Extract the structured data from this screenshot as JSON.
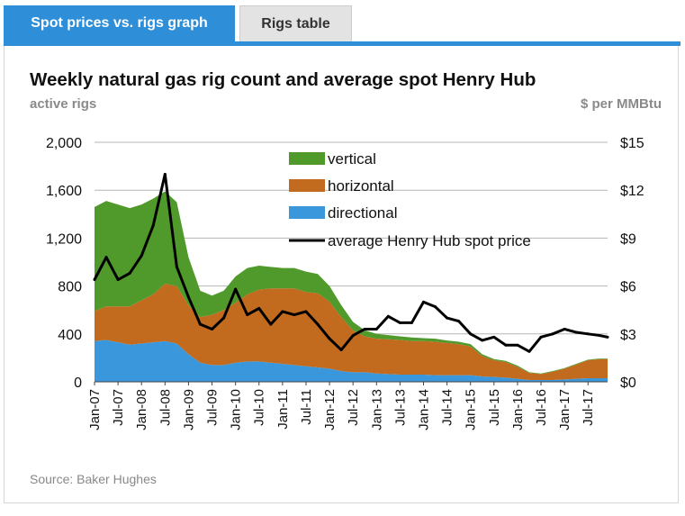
{
  "tabs": [
    {
      "label": "Spot prices vs. rigs graph",
      "active": true
    },
    {
      "label": "Rigs table",
      "active": false
    }
  ],
  "colors": {
    "tab_active": "#2e8fd8",
    "vertical": "#4f9a2b",
    "horizontal": "#c26b1f",
    "directional": "#3b97dc",
    "price": "#000000"
  },
  "chart_data": {
    "type": "area",
    "title": "Weekly natural gas rig count and average spot Henry Hub",
    "ylabel_left": "active rigs",
    "ylabel_right": "$ per MMBtu",
    "source": "Source: Baker Hughes",
    "ylim_left": [
      0,
      2000
    ],
    "ylim_right": [
      0,
      15
    ],
    "yticks_left": [
      "2,000",
      "1,600",
      "1,200",
      "800",
      "400",
      "0"
    ],
    "yticks_right": [
      "$15",
      "$12",
      "$9",
      "$6",
      "$3",
      "$0"
    ],
    "xlim": [
      "2007-01",
      "2017-12"
    ],
    "xticks": [
      "Jan-07",
      "Jul-07",
      "Jan-08",
      "Jul-08",
      "Jan-09",
      "Jul-09",
      "Jan-10",
      "Jul-10",
      "Jan-11",
      "Jul-11",
      "Jan-12",
      "Jul-12",
      "Jan-13",
      "Jul-13",
      "Jan-14",
      "Jul-14",
      "Jan-15",
      "Jul-15",
      "Jan-16",
      "Jul-16",
      "Jan-17",
      "Jul-17"
    ],
    "grid": true,
    "legend_position": "top-center",
    "legend": [
      "vertical",
      "horizontal",
      "directional",
      "average Henry Hub spot price"
    ],
    "x": [
      "2007-01",
      "2007-04",
      "2007-07",
      "2007-10",
      "2008-01",
      "2008-04",
      "2008-07",
      "2008-10",
      "2009-01",
      "2009-04",
      "2009-07",
      "2009-10",
      "2010-01",
      "2010-04",
      "2010-07",
      "2010-10",
      "2011-01",
      "2011-04",
      "2011-07",
      "2011-10",
      "2012-01",
      "2012-04",
      "2012-07",
      "2012-10",
      "2013-01",
      "2013-04",
      "2013-07",
      "2013-10",
      "2014-01",
      "2014-04",
      "2014-07",
      "2014-10",
      "2015-01",
      "2015-04",
      "2015-07",
      "2015-10",
      "2016-01",
      "2016-04",
      "2016-07",
      "2016-10",
      "2017-01",
      "2017-04",
      "2017-07",
      "2017-10",
      "2017-12"
    ],
    "series": [
      {
        "name": "directional",
        "axis": "left",
        "stacked": true,
        "values": [
          340,
          350,
          330,
          310,
          320,
          330,
          340,
          320,
          230,
          160,
          140,
          140,
          160,
          170,
          170,
          160,
          150,
          140,
          130,
          120,
          110,
          90,
          80,
          80,
          70,
          65,
          60,
          60,
          60,
          55,
          55,
          55,
          55,
          45,
          40,
          35,
          25,
          15,
          15,
          15,
          20,
          25,
          30,
          30,
          30
        ]
      },
      {
        "name": "horizontal",
        "axis": "left",
        "stacked": true,
        "values": [
          250,
          280,
          300,
          320,
          360,
          400,
          480,
          480,
          410,
          380,
          420,
          460,
          500,
          560,
          600,
          620,
          630,
          640,
          620,
          620,
          560,
          450,
          350,
          300,
          290,
          290,
          290,
          280,
          280,
          280,
          270,
          260,
          240,
          170,
          140,
          130,
          100,
          60,
          50,
          70,
          90,
          120,
          150,
          160,
          160
        ]
      },
      {
        "name": "vertical",
        "axis": "left",
        "stacked": true,
        "values": [
          870,
          880,
          850,
          820,
          800,
          800,
          770,
          700,
          400,
          220,
          160,
          160,
          220,
          220,
          200,
          180,
          170,
          170,
          170,
          160,
          130,
          100,
          70,
          50,
          40,
          35,
          30,
          30,
          25,
          25,
          20,
          20,
          20,
          15,
          10,
          10,
          10,
          5,
          5,
          5,
          5,
          5,
          5,
          5,
          5
        ]
      },
      {
        "name": "average Henry Hub spot price",
        "axis": "right",
        "values": [
          6.4,
          7.8,
          6.4,
          6.8,
          7.9,
          9.8,
          13.0,
          7.2,
          5.3,
          3.6,
          3.3,
          4.0,
          5.8,
          4.2,
          4.6,
          3.6,
          4.4,
          4.2,
          4.4,
          3.6,
          2.7,
          2.0,
          2.9,
          3.3,
          3.3,
          4.1,
          3.7,
          3.7,
          5.0,
          4.7,
          4.0,
          3.8,
          3.0,
          2.6,
          2.8,
          2.3,
          2.3,
          1.9,
          2.8,
          3.0,
          3.3,
          3.1,
          3.0,
          2.9,
          2.8
        ]
      }
    ]
  }
}
